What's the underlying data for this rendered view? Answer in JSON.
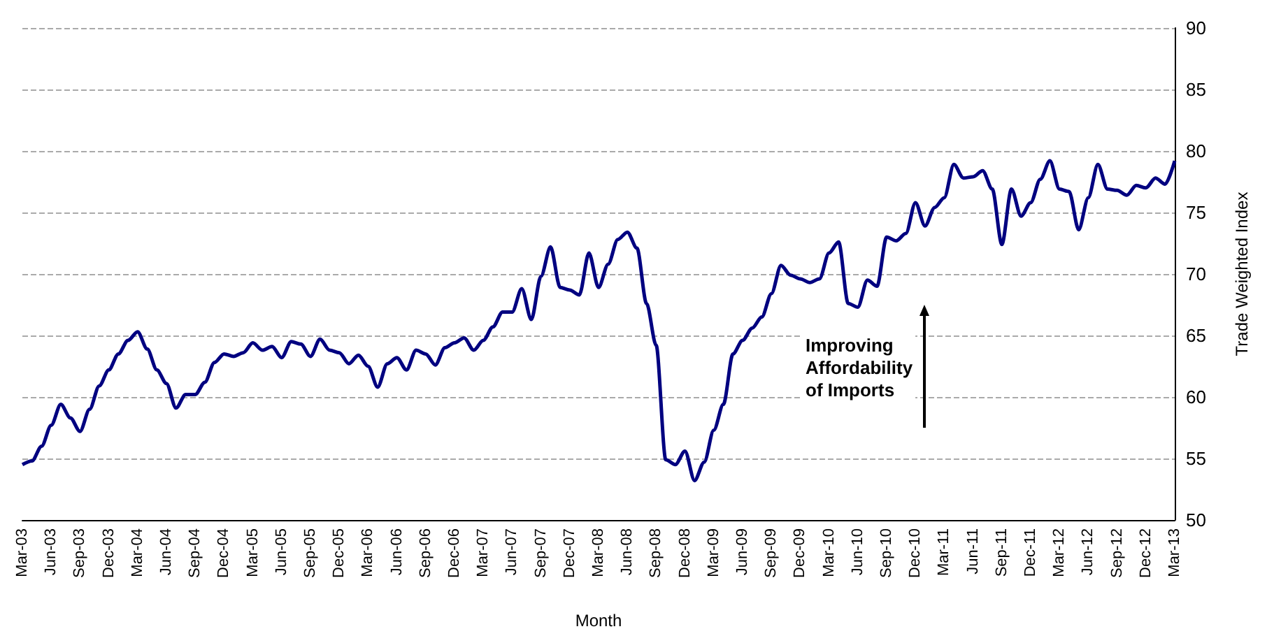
{
  "chart_data": {
    "type": "line",
    "xlabel": "Month",
    "y2label": "Trade Weighted Index",
    "categories": [
      "Mar-03",
      null,
      null,
      "Jun-03",
      null,
      null,
      "Sep-03",
      null,
      null,
      "Dec-03",
      null,
      null,
      "Mar-04",
      null,
      null,
      "Jun-04",
      null,
      null,
      "Sep-04",
      null,
      null,
      "Dec-04",
      null,
      null,
      "Mar-05",
      null,
      null,
      "Jun-05",
      null,
      null,
      "Sep-05",
      null,
      null,
      "Dec-05",
      null,
      null,
      "Mar-06",
      null,
      null,
      "Jun-06",
      null,
      null,
      "Sep-06",
      null,
      null,
      "Dec-06",
      null,
      null,
      "Mar-07",
      null,
      null,
      "Jun-07",
      null,
      null,
      "Sep-07",
      null,
      null,
      "Dec-07",
      null,
      null,
      "Mar-08",
      null,
      null,
      "Jun-08",
      null,
      null,
      "Sep-08",
      null,
      null,
      "Dec-08",
      null,
      null,
      "Mar-09",
      null,
      null,
      "Jun-09",
      null,
      null,
      "Sep-09",
      null,
      null,
      "Dec-09",
      null,
      null,
      "Mar-10",
      null,
      null,
      "Jun-10",
      null,
      null,
      "Sep-10",
      null,
      null,
      "Dec-10",
      null,
      null,
      "Mar-11",
      null,
      null,
      "Jun-11",
      null,
      null,
      "Sep-11",
      null,
      null,
      "Dec-11",
      null,
      null,
      "Mar-12",
      null,
      null,
      "Jun-12",
      null,
      null,
      "Sep-12",
      null,
      null,
      "Dec-12",
      null,
      null,
      "Mar-13"
    ],
    "series": [
      {
        "color": "#000080",
        "axis": "y2",
        "values": [
          54.5,
          54.8,
          56.0,
          57.7,
          59.4,
          58.3,
          57.2,
          59.0,
          60.9,
          62.2,
          63.5,
          64.6,
          65.3,
          63.9,
          62.2,
          61.1,
          59.1,
          60.2,
          60.2,
          61.2,
          62.8,
          63.5,
          63.3,
          63.6,
          64.4,
          63.8,
          64.1,
          63.2,
          64.5,
          64.3,
          63.3,
          64.7,
          63.8,
          63.6,
          62.7,
          63.4,
          62.5,
          60.8,
          62.7,
          63.2,
          62.2,
          63.8,
          63.5,
          62.6,
          64.0,
          64.4,
          64.8,
          63.8,
          64.6,
          65.7,
          66.9,
          66.9,
          68.8,
          66.3,
          69.8,
          72.2,
          68.9,
          68.7,
          68.3,
          71.7,
          68.9,
          70.8,
          72.8,
          73.4,
          72.1,
          67.6,
          64.2,
          54.9,
          54.5,
          55.6,
          53.2,
          54.7,
          57.3,
          59.4,
          63.5,
          64.6,
          65.6,
          66.5,
          68.4,
          70.7,
          69.9,
          69.6,
          69.3,
          69.6,
          71.7,
          72.6,
          67.6,
          67.3,
          69.5,
          69.0,
          73.0,
          72.7,
          73.3,
          75.8,
          73.9,
          75.4,
          76.2,
          78.9,
          77.8,
          77.9,
          78.4,
          76.9,
          72.4,
          76.9,
          74.7,
          75.8,
          77.7,
          79.2,
          76.9,
          76.7,
          73.6,
          76.2,
          78.9,
          76.9,
          76.8,
          76.4,
          77.2,
          77.0,
          77.8,
          77.3,
          79.2
        ]
      }
    ],
    "y2lim": [
      50,
      90
    ],
    "y2ticks": [
      50,
      55,
      60,
      65,
      70,
      75,
      80,
      85,
      90
    ],
    "grid": "y",
    "marker": "none",
    "line_style": "solid",
    "annotations": [
      "Improving\nAffordability\nof Imports"
    ]
  }
}
